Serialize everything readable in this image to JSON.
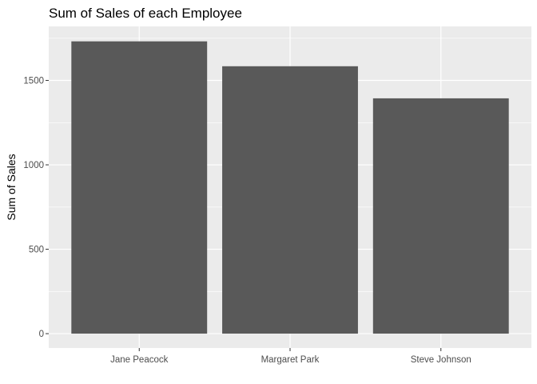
{
  "chart_data": {
    "type": "bar",
    "title": "Sum of Sales of each Employee",
    "xlabel": "",
    "ylabel": "Sum of Sales",
    "categories": [
      "Jane Peacock",
      "Margaret Park",
      "Steve Johnson"
    ],
    "values": [
      1731.5,
      1584.0,
      1393.9
    ],
    "ylim": [
      -85,
      1820
    ],
    "yticks": [
      0,
      500,
      1000,
      1500
    ],
    "ytick_labels": [
      "0",
      "500",
      "1000",
      "1500"
    ],
    "grid": true,
    "legend": "none",
    "colors": {
      "bar": "#595959",
      "panel": "#ebebeb",
      "grid": "#ffffff",
      "tick_text": "#4d4d4d",
      "tick_mark": "#333333"
    }
  }
}
